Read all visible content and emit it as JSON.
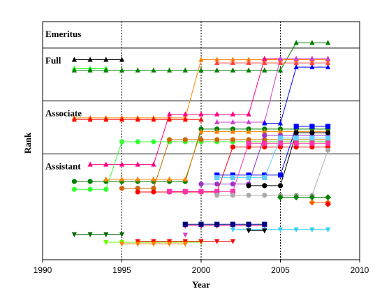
{
  "chart_data": {
    "type": "line",
    "title": "",
    "xlabel": "Year",
    "ylabel": "Rank",
    "xlim": [
      1990,
      2010
    ],
    "x_ticks": [
      1990,
      1995,
      2000,
      2005,
      2010
    ],
    "dotted_gridlines_x": [
      1995,
      2000,
      2005
    ],
    "grid": false,
    "rank_bands": [
      {
        "name": "Emeritus",
        "from": 3,
        "to": 3.5
      },
      {
        "name": "Full",
        "from": 2,
        "to": 3
      },
      {
        "name": "Associate",
        "from": 1,
        "to": 2
      },
      {
        "name": "Assistant",
        "from": -1,
        "to": 1
      }
    ],
    "y_range": [
      -1,
      3.5
    ],
    "series": [
      {
        "color": "#000000",
        "marker": "tri-up",
        "points": [
          [
            1992,
            2.78
          ],
          [
            1995,
            2.78
          ]
        ]
      },
      {
        "color": "#00ff00",
        "marker": "tri-up",
        "points": [
          [
            1992,
            2.61
          ],
          [
            1994,
            2.61
          ]
        ]
      },
      {
        "color": "#008000",
        "marker": "tri-up",
        "points": [
          [
            1992,
            2.58
          ],
          [
            2005,
            2.58
          ],
          [
            2006,
            3.1
          ],
          [
            2008,
            3.1
          ]
        ]
      },
      {
        "color": "#ff8000",
        "marker": "tri-up",
        "points": [
          [
            1992,
            1.68
          ],
          [
            1999,
            1.68
          ],
          [
            2000,
            2.78
          ],
          [
            2008,
            2.78
          ]
        ]
      },
      {
        "color": "#ff0000",
        "marker": "tri-up",
        "points": [
          [
            1992,
            1.65
          ],
          [
            2000,
            1.65
          ]
        ]
      },
      {
        "color": "#ff0080",
        "marker": "tri-up",
        "points": [
          [
            1993,
            0.8
          ],
          [
            1997,
            0.8
          ],
          [
            1998,
            1.75
          ],
          [
            2003,
            1.75
          ],
          [
            2004,
            2.8
          ],
          [
            2008,
            2.8
          ]
        ]
      },
      {
        "color": "#cc44cc",
        "marker": "tri-up",
        "points": [
          [
            2001,
            1.6
          ],
          [
            2004,
            1.6
          ],
          [
            2005,
            2.8
          ],
          [
            2008,
            2.8
          ]
        ]
      },
      {
        "color": "#0000ff",
        "marker": "tri-up",
        "points": [
          [
            2004,
            1.58
          ],
          [
            2005,
            1.58
          ],
          [
            2006,
            2.64
          ],
          [
            2008,
            2.64
          ]
        ]
      },
      {
        "color": "#ff4444",
        "marker": "tri-up",
        "points": [
          [
            2001,
            2.72
          ],
          [
            2008,
            2.72
          ]
        ]
      },
      {
        "color": "#008000",
        "marker": "circle",
        "points": [
          [
            1992,
            0.48
          ],
          [
            1999,
            0.48
          ],
          [
            2000,
            1.47
          ],
          [
            2008,
            1.47
          ]
        ]
      },
      {
        "color": "#33ff33",
        "marker": "circle",
        "points": [
          [
            1992,
            0.33
          ],
          [
            1994,
            0.33
          ],
          [
            1995,
            1.23
          ],
          [
            2008,
            1.23
          ]
        ]
      },
      {
        "color": "#cc6600",
        "marker": "circle",
        "points": [
          [
            1995,
            0.35
          ],
          [
            1997,
            0.35
          ],
          [
            1998,
            1.27
          ],
          [
            2008,
            1.27
          ]
        ]
      },
      {
        "color": "#ff0000",
        "marker": "circle",
        "points": [
          [
            1996,
            0.28
          ],
          [
            2001,
            0.28
          ],
          [
            2002,
            1.13
          ],
          [
            2008,
            1.13
          ]
        ]
      },
      {
        "color": "#ff8000",
        "marker": "tri-up",
        "points": [
          [
            1994,
            0.52
          ],
          [
            1999,
            0.52
          ],
          [
            2000,
            1.42
          ],
          [
            2008,
            1.42
          ]
        ]
      },
      {
        "color": "#9933cc",
        "marker": "circle",
        "points": [
          [
            2000,
            0.43
          ],
          [
            2003,
            0.43
          ],
          [
            2004,
            1.35
          ],
          [
            2008,
            1.35
          ]
        ]
      },
      {
        "color": "#0000ff",
        "marker": "square",
        "points": [
          [
            2001,
            0.6
          ],
          [
            2005,
            0.6
          ],
          [
            2006,
            1.52
          ],
          [
            2008,
            1.52
          ]
        ]
      },
      {
        "color": "#000000",
        "marker": "circle",
        "points": [
          [
            2003,
            0.4
          ],
          [
            2005,
            0.4
          ],
          [
            2006,
            1.4
          ],
          [
            2008,
            1.4
          ]
        ]
      },
      {
        "color": "#ff33aa",
        "marker": "square",
        "points": [
          [
            1998,
            0.29
          ],
          [
            2002,
            0.29
          ],
          [
            2003,
            1.2
          ],
          [
            2008,
            1.2
          ]
        ]
      },
      {
        "color": "#aaaaaa",
        "marker": "circle",
        "points": [
          [
            2001,
            0.22
          ],
          [
            2007,
            0.22
          ],
          [
            2008,
            1.07
          ]
        ]
      },
      {
        "color": "#66ccff",
        "marker": "square",
        "points": [
          [
            2001,
            0.55
          ],
          [
            2004,
            0.55
          ],
          [
            2005,
            1.3
          ],
          [
            2008,
            1.3
          ]
        ]
      },
      {
        "color": "#008000",
        "marker": "diamond",
        "points": [
          [
            2005,
            0.18
          ],
          [
            2008,
            0.18
          ]
        ]
      },
      {
        "color": "#ff6600",
        "marker": "diamond",
        "points": [
          [
            2007,
            0.08
          ],
          [
            2008,
            0.08
          ]
        ]
      },
      {
        "color": "#ff0000",
        "marker": "diamond",
        "points": [
          [
            2008,
            0.05
          ]
        ]
      },
      {
        "color": "#006600",
        "marker": "tri-down",
        "points": [
          [
            1992,
            -0.52
          ],
          [
            1995,
            -0.52
          ]
        ]
      },
      {
        "color": "#ff0080",
        "marker": "tri-down",
        "points": [
          [
            1999,
            -0.36
          ],
          [
            2004,
            -0.36
          ]
        ]
      },
      {
        "color": "#000080",
        "marker": "square",
        "points": [
          [
            1999,
            -0.33
          ],
          [
            2004,
            -0.33
          ]
        ]
      },
      {
        "color": "#33ccff",
        "marker": "tri-down",
        "points": [
          [
            2002,
            -0.43
          ],
          [
            2008,
            -0.43
          ]
        ]
      },
      {
        "color": "#000000",
        "marker": "tri-down",
        "points": [
          [
            2003,
            -0.45
          ],
          [
            2004,
            -0.45
          ]
        ]
      },
      {
        "color": "#cc44cc",
        "marker": "tri-down",
        "points": [
          [
            1999,
            -0.53
          ]
        ]
      },
      {
        "color": "#66ff00",
        "marker": "tri-down",
        "points": [
          [
            1994,
            -0.67
          ],
          [
            2000,
            -0.67
          ]
        ]
      },
      {
        "color": "#ff0000",
        "marker": "tri-down",
        "points": [
          [
            1996,
            -0.65
          ],
          [
            2002,
            -0.65
          ]
        ]
      },
      {
        "color": "#ff8000",
        "marker": "tri-down",
        "points": [
          [
            1995,
            -0.7
          ],
          [
            1999,
            -0.7
          ]
        ]
      }
    ]
  }
}
